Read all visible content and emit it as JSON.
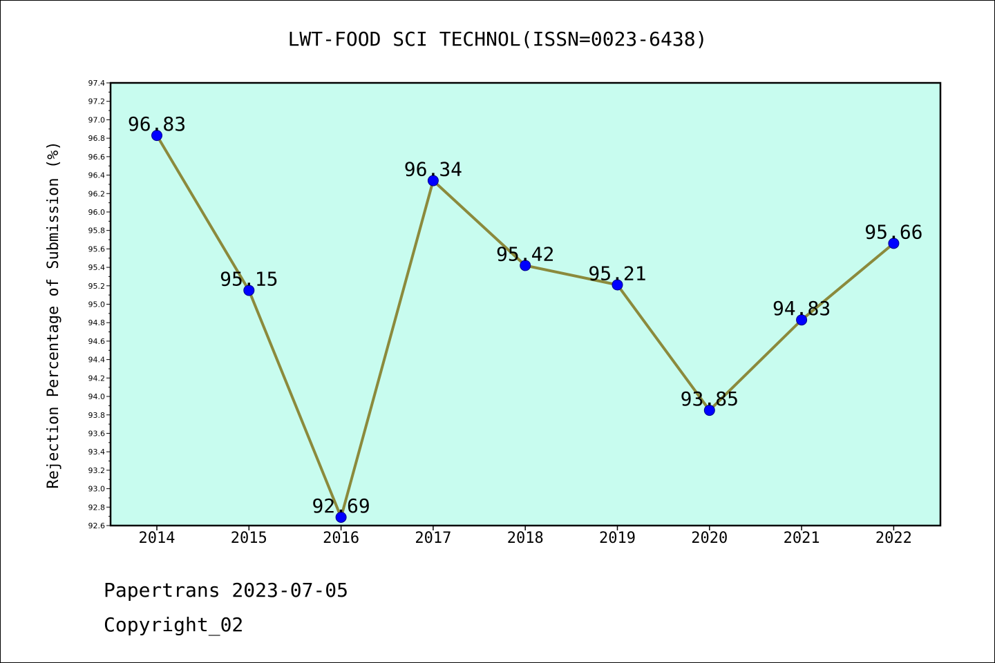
{
  "chart_data": {
    "type": "line",
    "title": "LWT-FOOD SCI TECHNOL(ISSN=0023-6438)",
    "ylabel": "Rejection Percentage of Submission (%)",
    "xlabel": "",
    "categories": [
      "2014",
      "2015",
      "2016",
      "2017",
      "2018",
      "2019",
      "2020",
      "2021",
      "2022"
    ],
    "values": [
      96.83,
      95.15,
      92.69,
      96.34,
      95.42,
      95.21,
      93.85,
      94.83,
      95.66
    ],
    "data_labels": [
      "96.83",
      "95.15",
      "92.69",
      "96.34",
      "95.42",
      "95.21",
      "93.85",
      "94.83",
      "95.66"
    ],
    "ylim": [
      92.6,
      97.4
    ],
    "yticks": [
      "92.6",
      "92.8",
      "93.0",
      "93.2",
      "93.4",
      "93.6",
      "93.8",
      "94.0",
      "94.2",
      "94.4",
      "94.6",
      "94.8",
      "95.0",
      "95.2",
      "95.4",
      "95.6",
      "95.8",
      "96.0",
      "96.2",
      "96.4",
      "96.6",
      "96.8",
      "97.0",
      "97.2",
      "97.4"
    ],
    "grid": false,
    "colors": {
      "plot_background": "#c8fcef",
      "line": "#8b8a3c",
      "marker": "#0000ff"
    }
  },
  "footer": {
    "source": "Papertrans 2023-07-05",
    "copyright": "Copyright_02"
  }
}
